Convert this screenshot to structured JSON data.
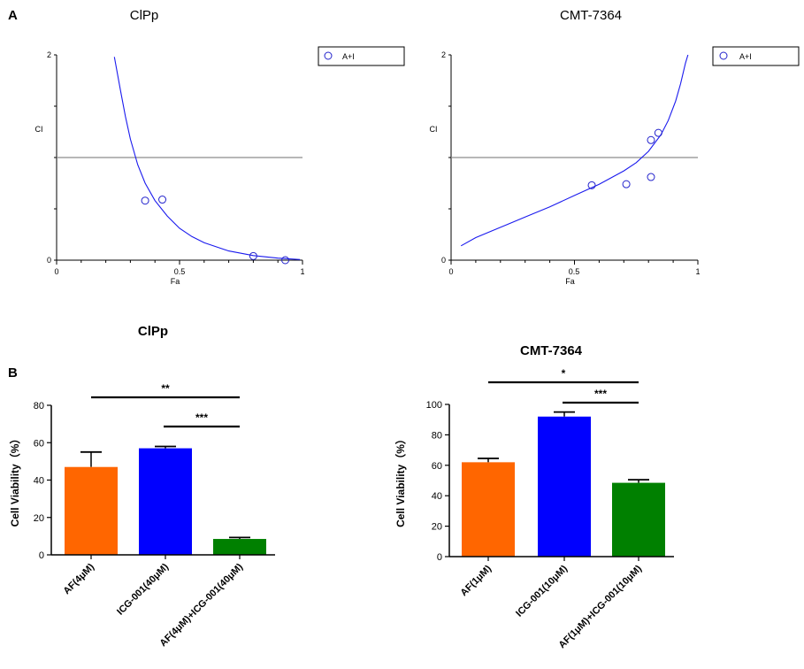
{
  "panels": {
    "A": "A",
    "B": "B"
  },
  "chart_data": [
    {
      "type": "scatter",
      "title": "ClPp",
      "xlabel": "Fa",
      "ylabel": "CI",
      "xlim": [
        0,
        1
      ],
      "ylim": [
        0,
        2
      ],
      "xticks": [
        "0",
        "0.5",
        "1"
      ],
      "yticks": [
        "0",
        "2"
      ],
      "reference_line": 1,
      "legend": "A+I",
      "series": [
        {
          "name": "A+I",
          "x": [
            0.36,
            0.43,
            0.8,
            0.93
          ],
          "y": [
            0.58,
            0.59,
            0.04,
            0.0
          ]
        }
      ],
      "curve": {
        "x": [
          0.235,
          0.26,
          0.28,
          0.3,
          0.33,
          0.36,
          0.4,
          0.45,
          0.5,
          0.55,
          0.6,
          0.7,
          0.8,
          0.9,
          0.99
        ],
        "y": [
          1.98,
          1.65,
          1.4,
          1.18,
          0.93,
          0.75,
          0.58,
          0.43,
          0.31,
          0.23,
          0.17,
          0.09,
          0.045,
          0.02,
          0.006
        ]
      }
    },
    {
      "type": "scatter",
      "title": "CMT-7364",
      "xlabel": "Fa",
      "ylabel": "CI",
      "xlim": [
        0,
        1
      ],
      "ylim": [
        0,
        2
      ],
      "xticks": [
        "0",
        "0.5",
        "1"
      ],
      "yticks": [
        "0",
        "2"
      ],
      "reference_line": 1,
      "legend": "A+I",
      "series": [
        {
          "name": "A+I",
          "x": [
            0.57,
            0.71,
            0.81,
            0.81,
            0.84
          ],
          "y": [
            0.73,
            0.74,
            0.81,
            1.17,
            1.24
          ]
        }
      ],
      "curve": {
        "x": [
          0.04,
          0.1,
          0.2,
          0.3,
          0.4,
          0.5,
          0.6,
          0.7,
          0.75,
          0.8,
          0.85,
          0.88,
          0.91,
          0.93,
          0.95,
          0.96
        ],
        "y": [
          0.14,
          0.22,
          0.32,
          0.42,
          0.52,
          0.63,
          0.74,
          0.87,
          0.95,
          1.06,
          1.22,
          1.36,
          1.55,
          1.72,
          1.92,
          2.0
        ]
      }
    },
    {
      "type": "bar",
      "title": "ClPp",
      "ylabel": "Cell Viability（%）",
      "ylim": [
        0,
        80
      ],
      "yticks": [
        "0",
        "20",
        "40",
        "60",
        "80"
      ],
      "categories": [
        "AF(4μM)",
        "ICG-001(40μM)",
        "AF(4μM)+ICG-001(40μM)"
      ],
      "values": [
        47,
        57,
        8.5
      ],
      "errors": [
        8,
        1,
        0.8
      ],
      "colors": [
        "#ff6600",
        "#0000ff",
        "#008000"
      ],
      "significance": [
        {
          "from": 0,
          "to": 2,
          "label": "**"
        },
        {
          "from": 1,
          "to": 2,
          "label": "***"
        }
      ]
    },
    {
      "type": "bar",
      "title": "CMT-7364",
      "ylabel": "Cell Viability（%）",
      "ylim": [
        0,
        100
      ],
      "yticks": [
        "0",
        "20",
        "40",
        "60",
        "80",
        "100"
      ],
      "categories": [
        "AF(1μM)",
        "ICG-001(10μM)",
        "AF(1μM)+ICG-001(10μM)"
      ],
      "values": [
        62,
        92,
        48.5
      ],
      "errors": [
        2.5,
        3,
        2
      ],
      "colors": [
        "#ff6600",
        "#0000ff",
        "#008000"
      ],
      "significance": [
        {
          "from": 0,
          "to": 2,
          "label": "*"
        },
        {
          "from": 1,
          "to": 2,
          "label": "***"
        }
      ]
    }
  ]
}
